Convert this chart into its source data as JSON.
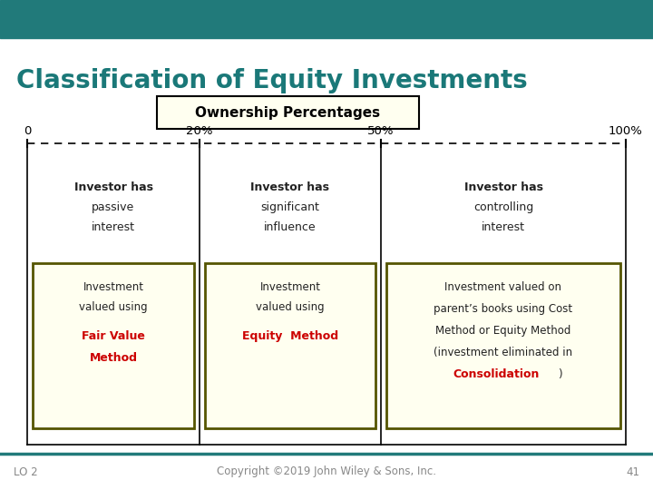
{
  "title": "Classification of Equity Investments",
  "title_color": "#1a7878",
  "header_bar_color": "#217a7a",
  "background_color": "#ffffff",
  "ownership_label": "Ownership Percentages",
  "ownership_box_color": "#fffff0",
  "ownership_box_edge": "#000000",
  "axis_labels": [
    "0",
    "20%",
    "50%",
    "100%"
  ],
  "box_fill": "#fffff0",
  "box_edge": "#555500",
  "red_color": "#cc0000",
  "black_color": "#000000",
  "dark_color": "#222222",
  "footer_lo": "LO 2",
  "footer_copyright": "Copyright ©2019 John Wiley & Sons, Inc.",
  "footer_page": "41",
  "footer_color": "#888888",
  "footer_line_color": "#217a7a",
  "line_color": "#000000"
}
